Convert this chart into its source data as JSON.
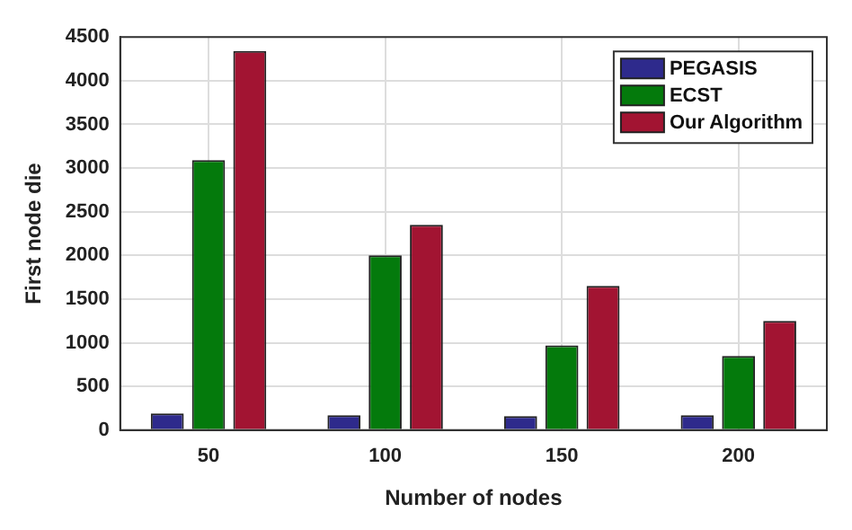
{
  "chart_data": {
    "type": "bar",
    "xlabel": "Number of nodes",
    "ylabel": "First node die",
    "categories": [
      "50",
      "100",
      "150",
      "200"
    ],
    "series": [
      {
        "name": "PEGASIS",
        "color": "#2e2a8c",
        "values": [
          190,
          170,
          160,
          170
        ]
      },
      {
        "name": "ECST",
        "color": "#047a0c",
        "values": [
          3090,
          2000,
          970,
          850
        ]
      },
      {
        "name": "Our Algorithm",
        "color": "#a21432",
        "values": [
          4340,
          2350,
          1650,
          1250
        ]
      }
    ],
    "ylim": [
      0,
      4500
    ],
    "yticks": [
      0,
      500,
      1000,
      1500,
      2000,
      2500,
      3000,
      3500,
      4000,
      4500
    ],
    "grid": true,
    "legend": "top right"
  }
}
